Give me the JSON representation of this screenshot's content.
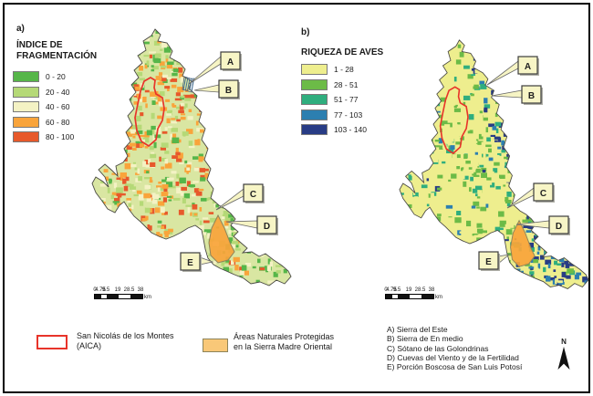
{
  "panel_a": {
    "label": "a)",
    "title": "ÍNDICE DE FRAGMENTACIÓN",
    "map_base": "#d9e6a2",
    "legend": [
      {
        "label": "0 - 20",
        "color": "#56b649"
      },
      {
        "label": "20 - 40",
        "color": "#b5d977"
      },
      {
        "label": "40 - 60",
        "color": "#f4f2c4"
      },
      {
        "label": "60 - 80",
        "color": "#f9a43b"
      },
      {
        "label": "80 - 100",
        "color": "#e7592b"
      }
    ],
    "callouts": [
      "A",
      "B",
      "C",
      "D",
      "E"
    ],
    "scalebar": {
      "ticks": [
        "0",
        "4.75",
        "9.5",
        "19",
        "28.5",
        "38"
      ],
      "unit": "km"
    }
  },
  "panel_b": {
    "label": "b)",
    "title": "RIQUEZA DE AVES",
    "map_base": "#eeee8e",
    "legend": [
      {
        "label": "1 - 28",
        "color": "#eeee8e"
      },
      {
        "label": "28 - 51",
        "color": "#6cbb47"
      },
      {
        "label": "51 - 77",
        "color": "#2fae7e"
      },
      {
        "label": "77 - 103",
        "color": "#2c7fb0"
      },
      {
        "label": "103 - 140",
        "color": "#283c85"
      }
    ],
    "callouts": [
      "A",
      "B",
      "C",
      "D",
      "E"
    ],
    "scalebar": {
      "ticks": [
        "0",
        "4.75",
        "9.5",
        "19",
        "28.5",
        "38"
      ],
      "unit": "km"
    }
  },
  "footer": {
    "aica": {
      "line1": "San Nicolás de los Montes",
      "line2": "(AICA)",
      "outline_color": "#e8342a"
    },
    "anp": {
      "line1": "Áreas Naturales Protegidas",
      "line2": "en la Sierra Madre Oriental",
      "fill_color": "#f9c878"
    },
    "sites": [
      "A) Sierra del Este",
      "B) Sierra de En medio",
      "C) Sótano de las Golondrinas",
      "D) Cuevas del Viento y de la Fertilidad",
      "E) Porción Boscosa de San Luis Potosí"
    ],
    "north_label": "N"
  }
}
